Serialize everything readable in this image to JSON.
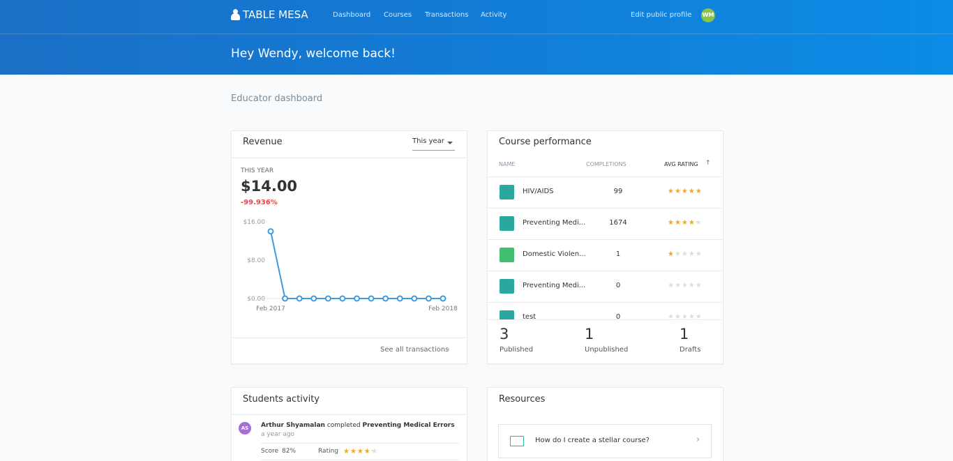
{
  "nav": {
    "brand": "TABLE MESA",
    "links": [
      "Dashboard",
      "Courses",
      "Transactions",
      "Activity"
    ],
    "profile": "Edit public profile",
    "avatar": "WM"
  },
  "greeting": "Hey Wendy, welcome back!",
  "section_title": "Educator dashboard",
  "revenue": {
    "title": "Revenue",
    "period": "This year",
    "period_label": "THIS YEAR",
    "total": "$14.00",
    "change": "-99.936%",
    "link": "See all transactions"
  },
  "chart_data": {
    "type": "line",
    "categories": [
      "Feb 2017",
      null,
      null,
      null,
      null,
      null,
      null,
      null,
      null,
      null,
      null,
      null,
      "Feb 2018"
    ],
    "values": [
      14,
      0,
      0,
      0,
      0,
      0,
      0,
      0,
      0,
      0,
      0,
      0,
      0
    ],
    "color": "#3a9be0",
    "ylim": [
      0,
      16
    ],
    "yticks": [
      {
        "value": 0,
        "label": "$0.00"
      },
      {
        "value": 8,
        "label": "$8.00"
      },
      {
        "value": 16,
        "label": "$16.00"
      }
    ],
    "grid": false
  },
  "course_performance": {
    "title": "Course performance",
    "headers": [
      "NAME",
      "COMPLETIONS",
      "AVG RATING"
    ],
    "rows": [
      {
        "name": "HIV/AIDS",
        "completions": 99,
        "rating": 4.5
      },
      {
        "name": "Preventing Medi...",
        "completions": 1674,
        "rating": 4
      },
      {
        "name": "Domestic Violen...",
        "completions": 1,
        "rating": 1
      },
      {
        "name": "Preventing Medi...",
        "completions": 0,
        "rating": 0
      },
      {
        "name": "test",
        "completions": 0,
        "rating": 0
      }
    ],
    "stats": [
      {
        "count": 3,
        "label": "Published"
      },
      {
        "count": 1,
        "label": "Unpublished"
      },
      {
        "count": 1,
        "label": "Drafts"
      }
    ]
  },
  "students_activity": {
    "title": "Students activity",
    "items": [
      {
        "avatar": "AS",
        "student": "Arthur Shyamalan",
        "action": "completed",
        "course": "Preventing Medical Errors",
        "time": "a year ago",
        "score_label": "Score",
        "score": "82%",
        "rating_label": "Rating",
        "rating": 4
      }
    ]
  },
  "resources": {
    "title": "Resources",
    "items": [
      "How do I create a stellar course?"
    ]
  }
}
